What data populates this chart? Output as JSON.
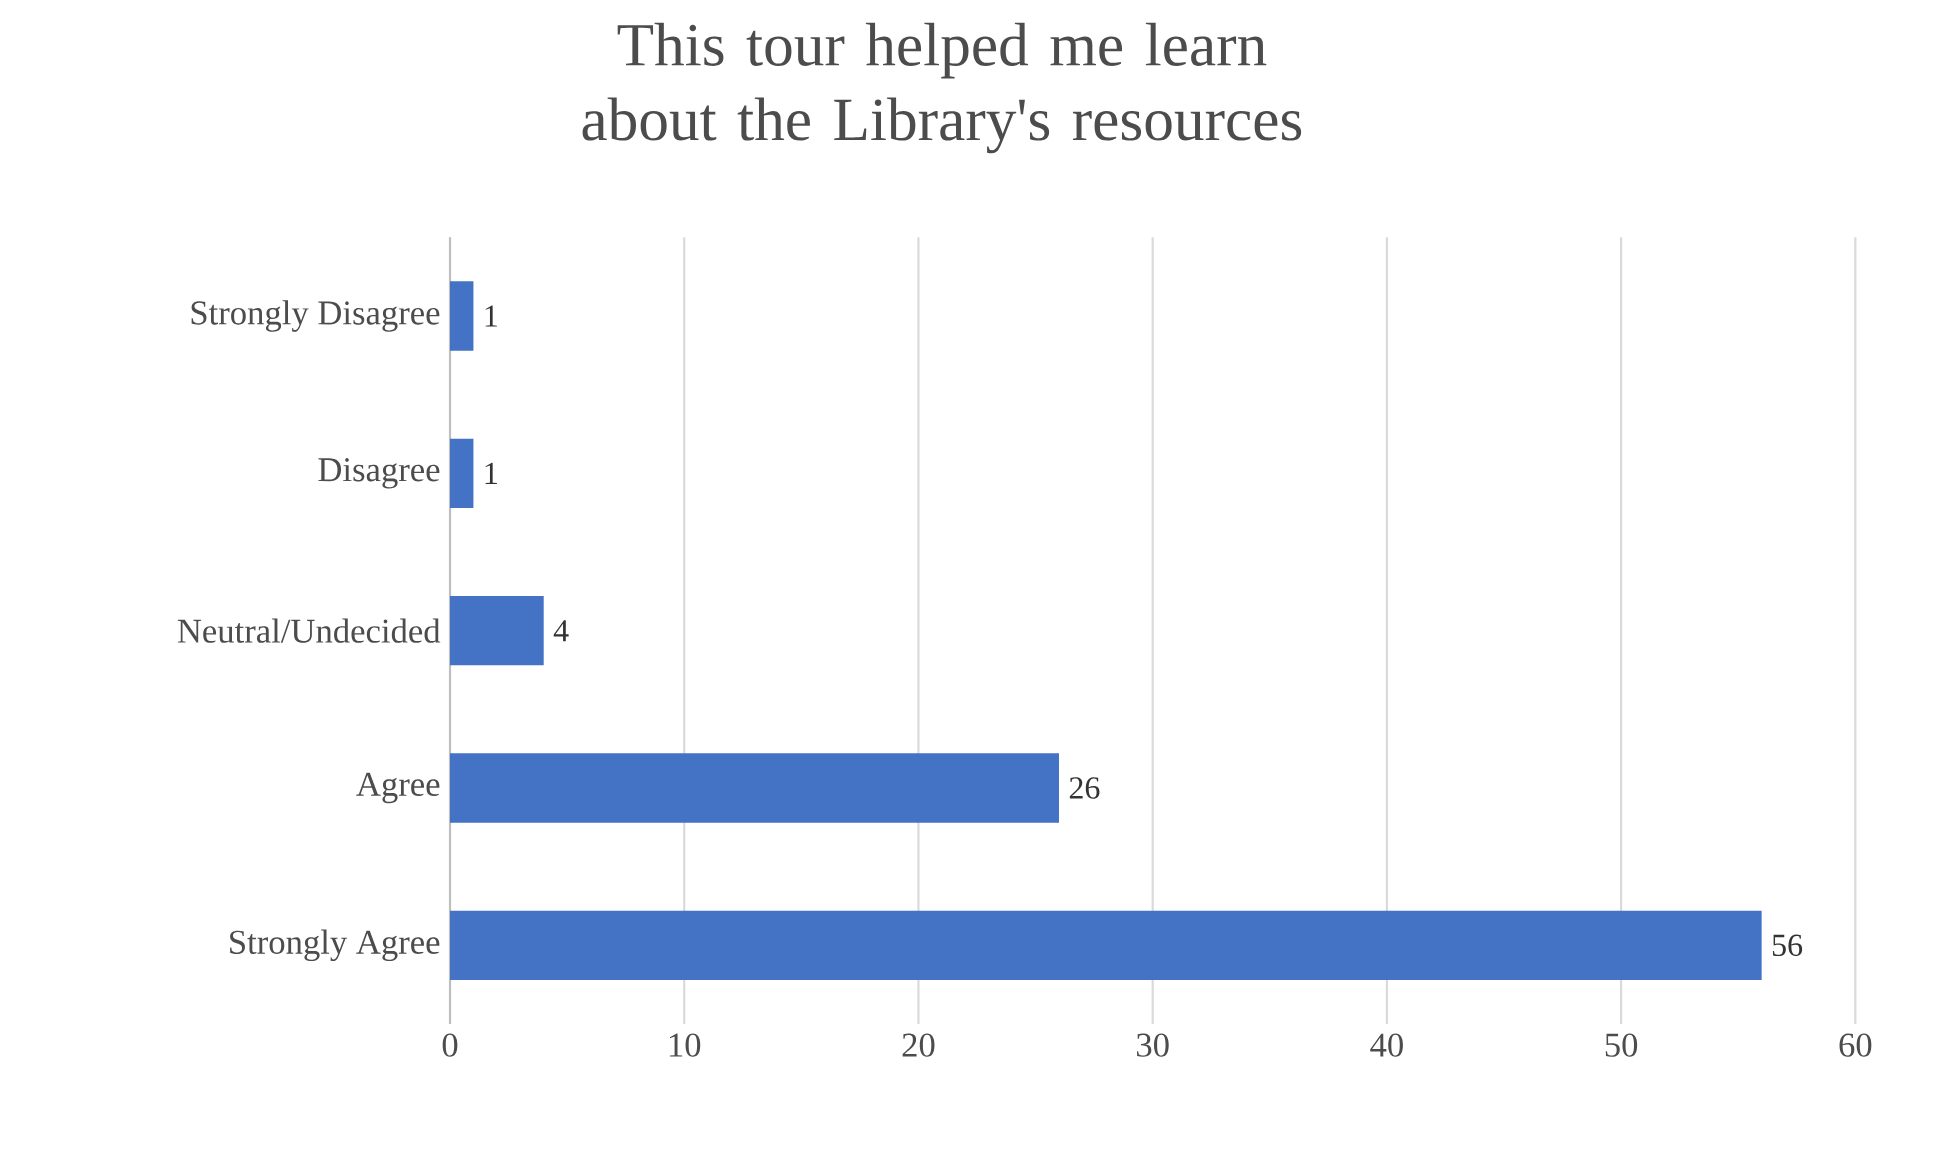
{
  "chart_data": {
    "type": "bar",
    "orientation": "horizontal",
    "title": "This tour helped me learn about the Library's resources",
    "categories": [
      "Strongly Disagree",
      "Disagree",
      "Neutral/Undecided",
      "Agree",
      "Strongly Agree"
    ],
    "values": [
      1,
      1,
      4,
      26,
      56
    ],
    "color": "#4472c4",
    "xlim": [
      0,
      60
    ],
    "xticks": [
      0,
      10,
      20,
      30,
      40,
      50,
      60
    ],
    "grid": "x",
    "data_labels": true
  }
}
